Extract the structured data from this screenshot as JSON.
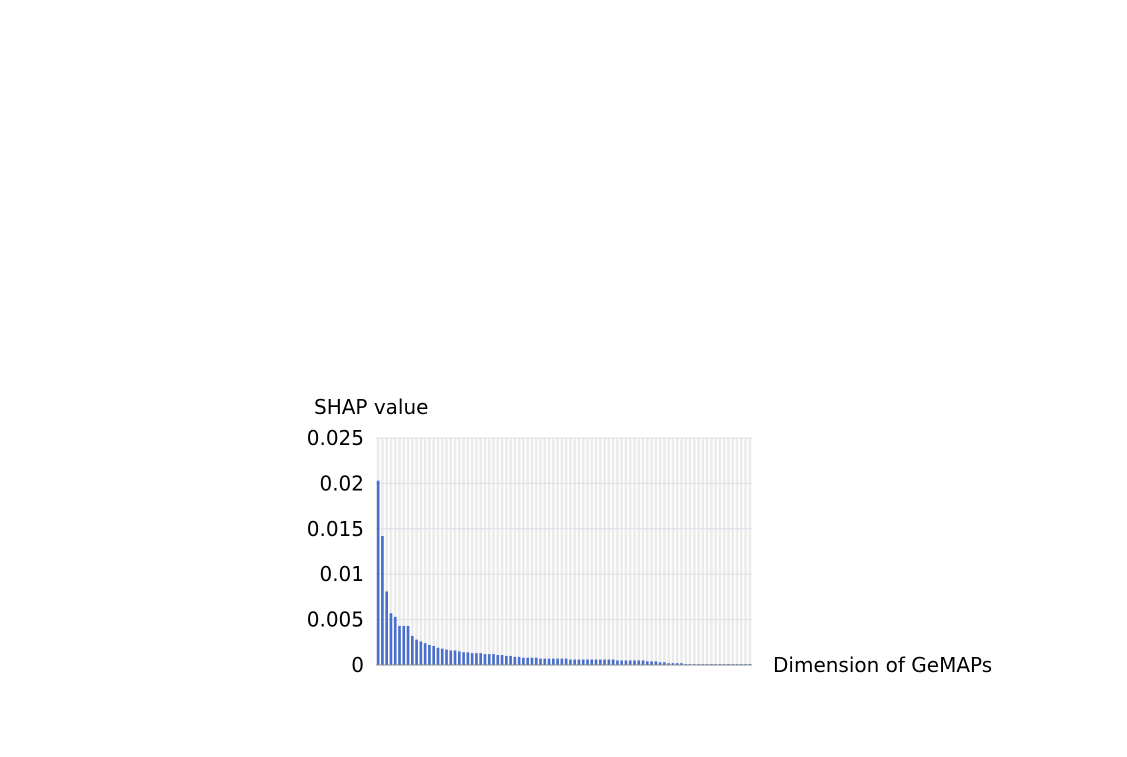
{
  "chart_data": {
    "type": "bar",
    "ylabel": "SHAP value",
    "xlabel": "Dimension of GeMAPs",
    "ylim": [
      0,
      0.025
    ],
    "yticks": [
      "0",
      "0.005",
      "0.01",
      "0.015",
      "0.02",
      "0.025"
    ],
    "grid": true,
    "bar_color": "#4A6FCB",
    "column_band_color": "#EBEBEB",
    "gridline_color": "#D9DEEA",
    "values": [
      0.0203,
      0.0142,
      0.0081,
      0.0057,
      0.0053,
      0.0043,
      0.0043,
      0.0043,
      0.0032,
      0.0028,
      0.0026,
      0.0024,
      0.0022,
      0.0021,
      0.0019,
      0.0018,
      0.0017,
      0.0016,
      0.0016,
      0.0015,
      0.0014,
      0.0014,
      0.0013,
      0.0013,
      0.0013,
      0.0012,
      0.0012,
      0.0012,
      0.0011,
      0.0011,
      0.001,
      0.001,
      0.0009,
      0.0009,
      0.0008,
      0.0008,
      0.0008,
      0.0008,
      0.0007,
      0.0007,
      0.0007,
      0.0007,
      0.0007,
      0.0007,
      0.0007,
      0.0006,
      0.0006,
      0.0006,
      0.0006,
      0.0006,
      0.0006,
      0.0006,
      0.0006,
      0.0006,
      0.0006,
      0.0006,
      0.0005,
      0.0005,
      0.0005,
      0.0005,
      0.0005,
      0.0005,
      0.0005,
      0.0004,
      0.0004,
      0.0004,
      0.0003,
      0.0003,
      0.0002,
      0.0002,
      0.0002,
      0.0002,
      0.0001,
      0.0001,
      0.0001,
      0.0001,
      0.0001,
      0.0001,
      0.0001,
      0.0001,
      0.0001,
      0.0001,
      0.0001,
      0.0001,
      0.0001,
      0.0001,
      0.0001,
      0.0001
    ]
  }
}
